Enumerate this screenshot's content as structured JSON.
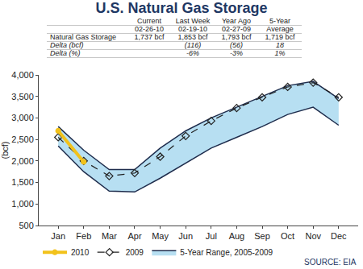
{
  "chart_data": {
    "type": "line",
    "title": "U.S. Natural Gas Storage",
    "y_label": "(bcf)",
    "categories": [
      "Jan",
      "Feb",
      "Mar",
      "Apr",
      "May",
      "Jun",
      "Jul",
      "Aug",
      "Sep",
      "Oct",
      "Nov",
      "Dec"
    ],
    "series": [
      {
        "name": "5-Year Range, 2005-2009",
        "type": "range",
        "color": "#b7dff2",
        "low": [
          2350,
          1750,
          1300,
          1280,
          1600,
          1950,
          2300,
          2550,
          2800,
          3080,
          3250,
          2830
        ],
        "high": [
          2800,
          2250,
          1800,
          1800,
          2300,
          2700,
          3000,
          3250,
          3500,
          3750,
          3850,
          3450
        ]
      },
      {
        "name": "2009",
        "type": "line",
        "color": "#222222",
        "line_style": "dash",
        "marker": "diamond-open",
        "values": [
          2550,
          2000,
          1650,
          1720,
          2100,
          2580,
          2930,
          3230,
          3480,
          3720,
          3820,
          3480
        ]
      },
      {
        "name": "2010",
        "type": "line",
        "color": "#f2c21b",
        "line_style": "solid",
        "marker": "circle",
        "values": [
          2700,
          1980,
          null,
          null,
          null,
          null,
          null,
          null,
          null,
          null,
          null,
          null
        ]
      }
    ],
    "ylim": [
      500,
      4000
    ],
    "yticks": [
      500,
      {
        "value": 1000,
        "label": "1,000"
      },
      {
        "value": 1500,
        "label": "1,500"
      },
      {
        "value": 2000,
        "label": "2,000"
      },
      {
        "value": 2500,
        "label": "2,500"
      },
      {
        "value": 3000,
        "label": "3,000"
      },
      {
        "value": 3500,
        "label": "3,500"
      },
      {
        "value": 4000,
        "label": "4,000"
      }
    ],
    "grid": false,
    "legend": "bottom",
    "source": "SOURCE: EIA"
  },
  "table": {
    "header": [
      [
        null,
        "Current",
        "Last Week",
        "Year Ago",
        "5-Year"
      ],
      [
        null,
        "02-26-10",
        "02-19-10",
        "02-27-09",
        "Average"
      ]
    ],
    "rows": [
      [
        "Natural Gas Storage",
        "1,737 bcf",
        "1,853 bcf",
        "1,793 bcf",
        "1,719 bcf"
      ],
      [
        "Delta (bcf)",
        null,
        "(116)",
        "(56)",
        "18"
      ],
      [
        "Delta (%)",
        null,
        "-6%",
        "-3%",
        "1%"
      ]
    ]
  }
}
